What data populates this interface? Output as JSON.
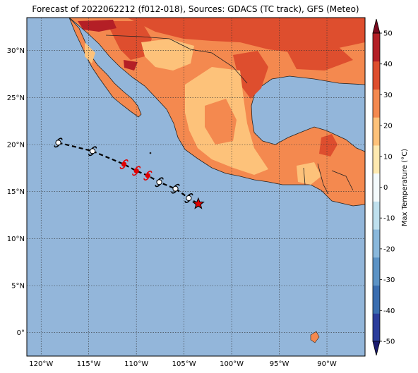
{
  "title": "Forecast of 2022062212 (f012-018), Sources: GDACS (TC track), GFS (Meteo)",
  "map": {
    "lon_labels": [
      "120°W",
      "115°W",
      "110°W",
      "105°W",
      "100°W",
      "95°W",
      "90°W"
    ],
    "lon_values": [
      -120,
      -115,
      -110,
      -105,
      -100,
      -95,
      -90
    ],
    "lat_labels": [
      "0°",
      "5°N",
      "10°N",
      "15°N",
      "20°N",
      "25°N",
      "30°N"
    ],
    "lat_values": [
      0,
      5,
      10,
      15,
      20,
      25,
      30
    ],
    "lon_range": [
      -121.5,
      -86
    ],
    "lat_range": [
      -2.5,
      33.5
    ],
    "ocean_color": "#93b6da",
    "gridlines": "dotted"
  },
  "colorbar": {
    "label": "Max Temperature (°C)",
    "ticks": [
      "-50",
      "-40",
      "-30",
      "-20",
      "-10",
      "0",
      "10",
      "20",
      "30",
      "40",
      "50"
    ],
    "colors": [
      "#1a1a6e",
      "#2b3c9c",
      "#3a6db0",
      "#5c93c6",
      "#8ab8dc",
      "#bfe0ee",
      "#f3fafc",
      "#fde9b0",
      "#fdc27a",
      "#f4894f",
      "#de4e2e",
      "#b41f26",
      "#7a0a1e"
    ]
  },
  "track": {
    "points_past_icon": "cyclone-symbol-white",
    "points_forecast_icon": "cyclone-symbol-red",
    "current_position_icon": "red-star",
    "points": [
      {
        "lon": -118.2,
        "lat": 20.2,
        "kind": "past"
      },
      {
        "lon": -114.6,
        "lat": 19.3,
        "kind": "past"
      },
      {
        "lon": -111.3,
        "lat": 17.9,
        "kind": "forecast"
      },
      {
        "lon": -110.0,
        "lat": 17.2,
        "kind": "forecast"
      },
      {
        "lon": -108.8,
        "lat": 16.7,
        "kind": "forecast"
      },
      {
        "lon": -107.6,
        "lat": 16.0,
        "kind": "past"
      },
      {
        "lon": -105.9,
        "lat": 15.3,
        "kind": "past"
      },
      {
        "lon": -104.5,
        "lat": 14.3,
        "kind": "past"
      }
    ],
    "current": {
      "lon": -103.5,
      "lat": 13.7
    }
  }
}
